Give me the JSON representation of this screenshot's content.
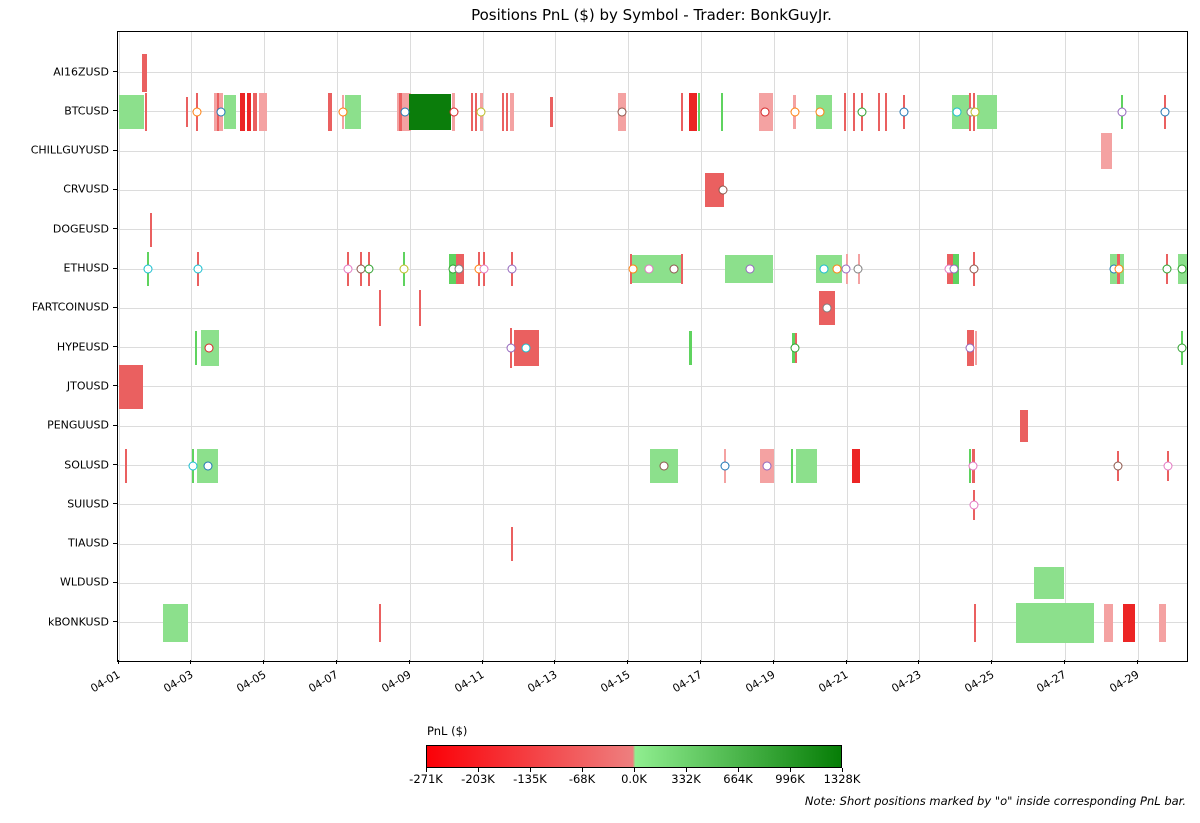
{
  "chart_data": {
    "type": "timeline_bars",
    "title": "Positions PnL ($) by Symbol - Trader: BonkGuyJr.",
    "note": "Note: Short positions marked by \"o\" inside corresponding PnL bar.",
    "x_axis": {
      "tick_labels": [
        "04-01",
        "04-03",
        "04-05",
        "04-07",
        "04-09",
        "04-11",
        "04-13",
        "04-15",
        "04-17",
        "04-19",
        "04-21",
        "04-23",
        "04-25",
        "04-27",
        "04-29"
      ],
      "tick_days": [
        0,
        2,
        4,
        6,
        8,
        10,
        12,
        14,
        16,
        18,
        20,
        22,
        24,
        26,
        28
      ],
      "range_days": [
        -0.03,
        29.35
      ],
      "grid": true
    },
    "y_axis": {
      "symbols": [
        "AI16ZUSD",
        "BTCUSD",
        "CHILLGUYUSD",
        "CRVUSD",
        "DOGEUSD",
        "ETHUSD",
        "FARTCOINUSD",
        "HYPEUSD",
        "JTOUSD",
        "PENGUUSD",
        "SOLUSD",
        "SUIUSD",
        "TIAUSD",
        "WLDUSD",
        "kBONKUSD"
      ],
      "grid": true
    },
    "colorbar": {
      "label": "PnL ($)",
      "tick_labels": [
        "-271K",
        "-203K",
        "-135K",
        "-68K",
        "0.0K",
        "332K",
        "664K",
        "996K",
        "1328K"
      ],
      "zero_fraction": 0.5,
      "negative_gradient": [
        "#fb0007",
        "#ee7f7f"
      ],
      "positive_gradient": [
        "#90ee90",
        "#067d06"
      ]
    },
    "bar_colors": {
      "r1": "#f4a2a2",
      "r2": "#ea6060",
      "r3": "#ec2525",
      "g1": "#8ce08c",
      "g2": "#5fd35f",
      "g3": "#0b7d0b"
    },
    "marker_colors": {
      "blue": "#1f77b4",
      "orange": "#ff7f0e",
      "green": "#2ca02c",
      "red": "#d62728",
      "purple": "#9467bd",
      "brown": "#8c564b",
      "pink": "#e377c2",
      "gray": "#7f7f7f",
      "olive": "#bcbd22",
      "cyan": "#17becf"
    },
    "rows": [
      {
        "symbol": "AI16ZUSD",
        "bars": [
          [
            0.63,
            0.76,
            "r2",
            38
          ]
        ],
        "markers": []
      },
      {
        "symbol": "BTCUSD",
        "bars": [
          [
            0.0,
            0.7,
            "g1",
            34
          ],
          [
            0.71,
            0.77,
            "r2",
            38
          ],
          [
            1.84,
            1.9,
            "r2",
            30
          ],
          [
            2.12,
            2.18,
            "r2",
            38
          ],
          [
            2.62,
            2.87,
            "r1",
            38
          ],
          [
            2.7,
            2.76,
            "r2",
            38
          ],
          [
            2.89,
            3.21,
            "g1",
            34
          ],
          [
            3.33,
            3.46,
            "r3",
            38
          ],
          [
            3.52,
            3.63,
            "r3",
            38
          ],
          [
            3.69,
            3.79,
            "r2",
            38
          ],
          [
            3.85,
            4.07,
            "r1",
            38
          ],
          [
            5.75,
            5.86,
            "r2",
            38
          ],
          [
            6.12,
            6.19,
            "r1",
            34
          ],
          [
            6.22,
            6.66,
            "g1",
            34
          ],
          [
            7.64,
            8.02,
            "r1",
            38
          ],
          [
            7.7,
            7.77,
            "r2",
            38
          ],
          [
            7.98,
            9.13,
            "g3",
            36
          ],
          [
            9.15,
            9.22,
            "r1",
            38
          ],
          [
            9.67,
            9.73,
            "r2",
            38
          ],
          [
            9.78,
            9.84,
            "r2",
            38
          ],
          [
            9.91,
            10.01,
            "r1",
            38
          ],
          [
            10.51,
            10.57,
            "r2",
            38
          ],
          [
            10.62,
            10.68,
            "r2",
            38
          ],
          [
            10.74,
            10.86,
            "r1",
            38
          ],
          [
            11.85,
            11.91,
            "r2",
            30
          ],
          [
            13.7,
            13.92,
            "r1",
            38
          ],
          [
            15.43,
            15.49,
            "r2",
            38
          ],
          [
            15.65,
            15.87,
            "r3",
            38
          ],
          [
            15.9,
            15.96,
            "g2",
            38
          ],
          [
            16.53,
            16.59,
            "g2",
            38
          ],
          [
            17.57,
            17.96,
            "r1",
            38
          ],
          [
            18.53,
            18.6,
            "r1",
            34
          ],
          [
            19.14,
            19.58,
            "g1",
            34
          ],
          [
            19.91,
            19.97,
            "r2",
            38
          ],
          [
            20.16,
            20.22,
            "r2",
            38
          ],
          [
            20.38,
            20.44,
            "r2",
            38
          ],
          [
            20.85,
            20.91,
            "r2",
            38
          ],
          [
            21.04,
            21.1,
            "r2",
            38
          ],
          [
            21.53,
            21.59,
            "r2",
            34
          ],
          [
            22.88,
            23.34,
            "g1",
            34
          ],
          [
            23.36,
            23.42,
            "r2",
            38
          ],
          [
            23.45,
            23.51,
            "r2",
            38
          ],
          [
            23.57,
            24.12,
            "g1",
            34
          ],
          [
            27.52,
            27.58,
            "g2",
            34
          ],
          [
            28.71,
            28.77,
            "r2",
            34
          ]
        ],
        "markers": [
          [
            "orange",
            2.15
          ],
          [
            "blue",
            2.8
          ],
          [
            "orange",
            6.16
          ],
          [
            "blue",
            7.87
          ],
          [
            "red",
            9.19
          ],
          [
            "olive",
            9.95
          ],
          [
            "brown",
            13.81
          ],
          [
            "red",
            17.74
          ],
          [
            "orange",
            18.56
          ],
          [
            "orange",
            19.25
          ],
          [
            "green",
            20.41
          ],
          [
            "blue",
            21.56
          ],
          [
            "cyan",
            23.02
          ],
          [
            "gray",
            23.42
          ],
          [
            "olive",
            23.52
          ],
          [
            "purple",
            27.55
          ],
          [
            "blue",
            28.74
          ]
        ]
      },
      {
        "symbol": "CHILLGUYUSD",
        "bars": [
          [
            26.97,
            27.28,
            "r1",
            36
          ]
        ],
        "markers": []
      },
      {
        "symbol": "CRVUSD",
        "bars": [
          [
            16.1,
            16.62,
            "r2",
            34
          ]
        ],
        "markers": [
          [
            "brown",
            16.58
          ]
        ]
      },
      {
        "symbol": "DOGEUSD",
        "bars": [
          [
            0.85,
            0.91,
            "r2",
            34
          ]
        ],
        "markers": []
      },
      {
        "symbol": "ETHUSD",
        "bars": [
          [
            0.77,
            0.83,
            "g2",
            34
          ],
          [
            2.14,
            2.2,
            "r2",
            34
          ],
          [
            6.27,
            6.33,
            "r2",
            34
          ],
          [
            6.62,
            6.68,
            "r2",
            34
          ],
          [
            6.84,
            6.9,
            "r2",
            34
          ],
          [
            7.8,
            7.86,
            "g2",
            34
          ],
          [
            9.07,
            9.26,
            "g2",
            30
          ],
          [
            9.26,
            9.49,
            "r2",
            30
          ],
          [
            9.86,
            9.92,
            "r2",
            34
          ],
          [
            10.0,
            10.06,
            "r2",
            34
          ],
          [
            10.76,
            10.82,
            "r2",
            34
          ],
          [
            14.04,
            14.1,
            "r2",
            30
          ],
          [
            14.08,
            15.45,
            "g1",
            28
          ],
          [
            15.43,
            15.49,
            "r2",
            30
          ],
          [
            16.64,
            17.98,
            "g1",
            28
          ],
          [
            19.14,
            19.85,
            "g1",
            28
          ],
          [
            19.98,
            20.04,
            "r1",
            30
          ],
          [
            20.3,
            20.36,
            "r1",
            30
          ],
          [
            22.74,
            22.9,
            "r2",
            30
          ],
          [
            22.9,
            23.08,
            "g2",
            30
          ],
          [
            23.45,
            23.51,
            "r2",
            34
          ],
          [
            27.22,
            27.61,
            "g1",
            30
          ],
          [
            27.43,
            27.5,
            "r2",
            30
          ],
          [
            28.76,
            28.82,
            "r2",
            30
          ],
          [
            29.08,
            29.48,
            "g1",
            30
          ]
        ],
        "markers": [
          [
            "cyan",
            0.8
          ],
          [
            "cyan",
            2.17
          ],
          [
            "pink",
            6.3
          ],
          [
            "brown",
            6.65
          ],
          [
            "green",
            6.87
          ],
          [
            "olive",
            7.83
          ],
          [
            "green",
            9.17
          ],
          [
            "gray",
            9.35
          ],
          [
            "orange",
            9.89
          ],
          [
            "pink",
            10.03
          ],
          [
            "purple",
            10.79
          ],
          [
            "orange",
            14.13
          ],
          [
            "pink",
            14.57
          ],
          [
            "brown",
            15.26
          ],
          [
            "purple",
            17.33
          ],
          [
            "cyan",
            19.36
          ],
          [
            "orange",
            19.73
          ],
          [
            "purple",
            19.96
          ],
          [
            "gray",
            20.3
          ],
          [
            "pink",
            22.8
          ],
          [
            "purple",
            22.95
          ],
          [
            "brown",
            23.48
          ],
          [
            "blue",
            27.33
          ],
          [
            "orange",
            27.46
          ],
          [
            "green",
            28.79
          ],
          [
            "green",
            29.21
          ]
        ]
      },
      {
        "symbol": "FARTCOINUSD",
        "bars": [
          [
            7.14,
            7.2,
            "r2",
            36
          ],
          [
            8.24,
            8.3,
            "r2",
            36
          ],
          [
            19.22,
            19.66,
            "r2",
            34
          ]
        ],
        "markers": [
          [
            "gray",
            19.44
          ]
        ]
      },
      {
        "symbol": "HYPEUSD",
        "bars": [
          [
            2.09,
            2.15,
            "g2",
            34
          ],
          [
            2.26,
            2.75,
            "g1",
            36
          ],
          [
            10.75,
            10.81,
            "r2",
            40
          ],
          [
            10.86,
            11.55,
            "r2",
            36
          ],
          [
            15.67,
            15.73,
            "g2",
            34
          ],
          [
            18.5,
            18.56,
            "g2",
            30
          ],
          [
            18.57,
            18.63,
            "r2",
            30
          ],
          [
            23.29,
            23.48,
            "r2",
            36
          ],
          [
            23.51,
            23.57,
            "r1",
            34
          ],
          [
            29.17,
            29.23,
            "g2",
            34
          ]
        ],
        "markers": [
          [
            "red",
            2.48
          ],
          [
            "purple",
            10.78
          ],
          [
            "cyan",
            11.19
          ],
          [
            "green",
            18.56
          ],
          [
            "purple",
            23.38
          ],
          [
            "green",
            29.2
          ]
        ]
      },
      {
        "symbol": "JTOUSD",
        "bars": [
          [
            0.0,
            0.67,
            "r2",
            44
          ]
        ],
        "markers": []
      },
      {
        "symbol": "PENGUUSD",
        "bars": [
          [
            24.74,
            24.97,
            "r2",
            32
          ]
        ],
        "markers": []
      },
      {
        "symbol": "SOLUSD",
        "bars": [
          [
            0.16,
            0.22,
            "r2",
            34
          ],
          [
            2.0,
            2.06,
            "g2",
            34
          ],
          [
            2.15,
            2.72,
            "g1",
            34
          ],
          [
            14.58,
            15.37,
            "g1",
            34
          ],
          [
            16.61,
            16.67,
            "r1",
            34
          ],
          [
            17.6,
            17.99,
            "r1",
            34
          ],
          [
            18.47,
            18.53,
            "g2",
            34
          ],
          [
            18.61,
            19.17,
            "g1",
            34
          ],
          [
            20.13,
            20.35,
            "r3",
            34
          ],
          [
            23.34,
            23.4,
            "g2",
            34
          ],
          [
            23.44,
            23.51,
            "r2",
            34
          ],
          [
            27.42,
            27.48,
            "r2",
            30
          ],
          [
            28.78,
            28.84,
            "r2",
            30
          ]
        ],
        "markers": [
          [
            "cyan",
            2.02
          ],
          [
            "blue",
            2.45
          ],
          [
            "brown",
            14.96
          ],
          [
            "blue",
            16.64
          ],
          [
            "purple",
            17.79
          ],
          [
            "pink",
            23.47
          ],
          [
            "brown",
            27.45
          ],
          [
            "pink",
            28.81
          ]
        ]
      },
      {
        "symbol": "SUIUSD",
        "bars": [
          [
            23.45,
            23.51,
            "r2",
            30
          ]
        ],
        "markers": [
          [
            "pink",
            23.48
          ]
        ]
      },
      {
        "symbol": "TIAUSD",
        "bars": [
          [
            10.77,
            10.83,
            "r2",
            34
          ]
        ],
        "markers": []
      },
      {
        "symbol": "WLDUSD",
        "bars": [
          [
            25.14,
            25.96,
            "g1",
            32
          ]
        ],
        "markers": []
      },
      {
        "symbol": "kBONKUSD",
        "bars": [
          [
            1.21,
            1.9,
            "g1",
            38
          ],
          [
            7.15,
            7.21,
            "r2",
            38
          ],
          [
            23.49,
            23.55,
            "r2",
            38
          ],
          [
            24.64,
            26.78,
            "g1",
            40
          ],
          [
            27.06,
            27.3,
            "r1",
            38
          ],
          [
            27.58,
            27.91,
            "r3",
            38
          ],
          [
            28.58,
            28.76,
            "r1",
            38
          ]
        ],
        "markers": []
      }
    ]
  }
}
